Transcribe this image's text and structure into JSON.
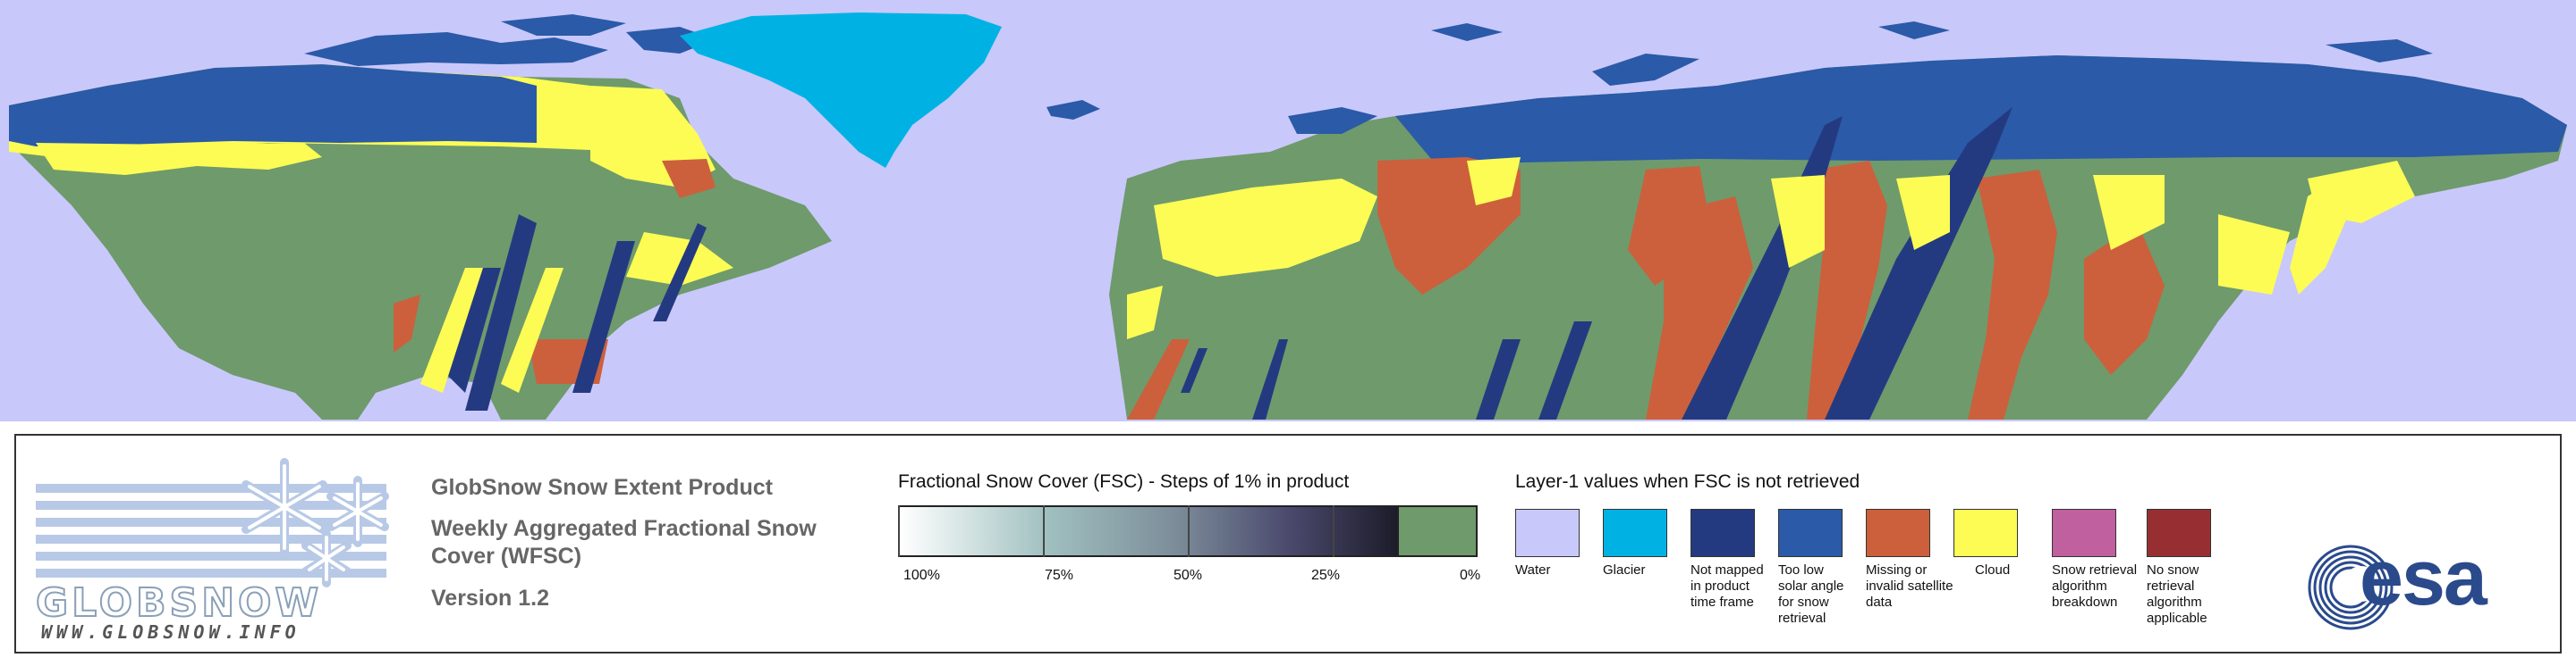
{
  "colors": {
    "water": "#c9c8fb",
    "glacier": "#00b2e4",
    "not_mapped": "#243a80",
    "low_solar": "#2a5aa8",
    "missing": "#cc603c",
    "cloud": "#fcfc55",
    "breakdown": "#c0609e",
    "not_applicable": "#972f32",
    "snow_free": "#6f9a6c"
  },
  "logo": {
    "wordmark": "GLOBSNOW",
    "url": "WWW.GLOBSNOW.INFO",
    "snowflake_icon": "snowflake-icon"
  },
  "product": {
    "name": "GlobSnow Snow Extent Product",
    "type_line1": "Weekly Aggregated Fractional Snow",
    "type_line2": "Cover (WFSC)",
    "version": "Version 1.2"
  },
  "fsc_scale": {
    "title": "Fractional Snow Cover (FSC) - Steps of 1% in product",
    "ticks": [
      "100%",
      "75%",
      "50%",
      "25%",
      "0%"
    ]
  },
  "layer1": {
    "title": "Layer-1 values when FSC is not retrieved",
    "items": [
      {
        "label": "Water",
        "color": "#c9c8fb"
      },
      {
        "label": "Glacier",
        "color": "#00b2e4"
      },
      {
        "label": "Not mapped in product time frame",
        "color": "#243a80"
      },
      {
        "label": "Too low solar angle for snow retrieval",
        "color": "#2a5aa8"
      },
      {
        "label": "Missing or invalid satellite data",
        "color": "#cc603c"
      },
      {
        "label": "Cloud",
        "color": "#fcfc55"
      },
      {
        "label": "Snow retrieval algorithm breakdown",
        "color": "#c0609e"
      },
      {
        "label": "No snow retrieval algorithm applicable",
        "color": "#972f32"
      }
    ]
  },
  "agency_logo": {
    "text": "esa",
    "icon": "esa-swirl-icon"
  }
}
